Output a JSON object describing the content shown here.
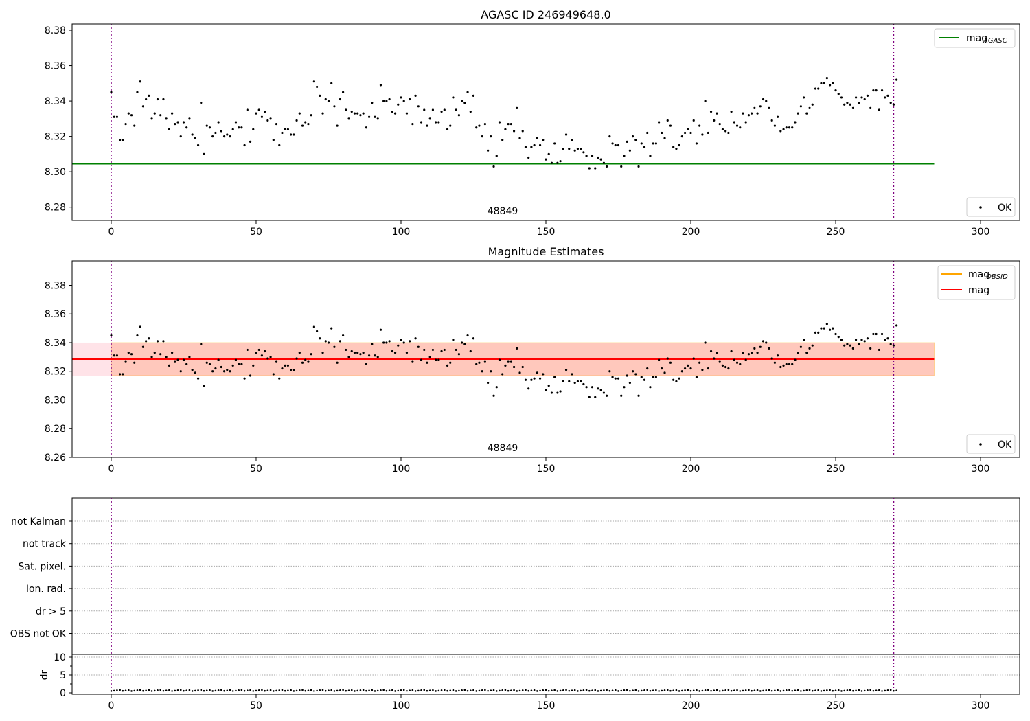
{
  "chart_data": [
    {
      "type": "scatter",
      "title": "AGASC ID 246949648.0",
      "xlim": [
        -13.5,
        313.5
      ],
      "ylim": [
        8.2725,
        8.3835
      ],
      "xticks": [
        "0",
        "50",
        "100",
        "150",
        "200",
        "250",
        "300"
      ],
      "yticks": [
        "8.28",
        "8.30",
        "8.32",
        "8.34",
        "8.36",
        "8.38"
      ],
      "vlines": [
        0,
        270
      ],
      "hline": {
        "y": 8.3045,
        "x_range": [
          -13.5,
          284
        ],
        "color": "#008000"
      },
      "annotation": {
        "text": "48849",
        "x": 135
      },
      "legend": [
        {
          "label": "mag",
          "sub": "AGASC",
          "kind": "line",
          "color": "#008000"
        },
        {
          "label": "OK",
          "kind": "dot",
          "color": "#000000"
        }
      ],
      "series_ref": "mags"
    },
    {
      "type": "scatter",
      "title": "Magnitude Estimates",
      "xlim": [
        -13.5,
        313.5
      ],
      "ylim": [
        8.26,
        8.397
      ],
      "xticks": [
        "0",
        "50",
        "100",
        "150",
        "200",
        "250",
        "300"
      ],
      "yticks": [
        "8.26",
        "8.28",
        "8.30",
        "8.32",
        "8.34",
        "8.36",
        "8.38"
      ],
      "vlines": [
        0,
        270
      ],
      "mag_mean": 8.3285,
      "band_outer": [
        8.317,
        8.34
      ],
      "band_inner": [
        8.317,
        8.34
      ],
      "band_x_range": [
        -13.5,
        284
      ],
      "annotation": {
        "text": "48849",
        "x": 135
      },
      "legend": [
        {
          "label": "mag",
          "sub": "OBSID",
          "kind": "line",
          "color": "#FFA500"
        },
        {
          "label": "mag",
          "kind": "line",
          "color": "#FF0000"
        },
        {
          "label": "OK",
          "kind": "dot",
          "color": "#000000"
        }
      ],
      "series_ref": "mags"
    },
    {
      "type": "table",
      "flags": [
        "not Kalman",
        "not track",
        "Sat. pixel.",
        "Ion. rad.",
        "dr > 5",
        "OBS not OK"
      ],
      "dr_yticks": [
        "0",
        "5",
        "10"
      ],
      "dr_ylabel": "dr",
      "xticks": [
        "0",
        "50",
        "100",
        "150",
        "200",
        "250",
        "300"
      ],
      "vlines": [
        0,
        270
      ]
    }
  ],
  "mags": [
    8.345,
    8.331,
    8.331,
    8.318,
    8.318,
    8.327,
    8.333,
    8.332,
    8.326,
    8.345,
    8.351,
    8.337,
    8.341,
    8.343,
    8.33,
    8.333,
    8.341,
    8.332,
    8.341,
    8.33,
    8.324,
    8.333,
    8.327,
    8.328,
    8.32,
    8.328,
    8.325,
    8.33,
    8.321,
    8.319,
    8.315,
    8.339,
    8.31,
    8.326,
    8.325,
    8.32,
    8.322,
    8.328,
    8.323,
    8.32,
    8.321,
    8.32,
    8.324,
    8.328,
    8.325,
    8.325,
    8.315,
    8.335,
    8.317,
    8.324,
    8.333,
    8.335,
    8.331,
    8.334,
    8.329,
    8.33,
    8.318,
    8.327,
    8.315,
    8.322,
    8.324,
    8.324,
    8.321,
    8.321,
    8.329,
    8.333,
    8.326,
    8.328,
    8.327,
    8.332,
    8.351,
    8.348,
    8.343,
    8.333,
    8.341,
    8.34,
    8.35,
    8.337,
    8.326,
    8.341,
    8.345,
    8.335,
    8.33,
    8.334,
    8.333,
    8.333,
    8.332,
    8.333,
    8.325,
    8.331,
    8.339,
    8.331,
    8.33,
    8.349,
    8.34,
    8.34,
    8.341,
    8.334,
    8.333,
    8.338,
    8.342,
    8.34,
    8.333,
    8.341,
    8.327,
    8.343,
    8.337,
    8.328,
    8.335,
    8.326,
    8.33,
    8.335,
    8.328,
    8.328,
    8.334,
    8.335,
    8.324,
    8.326,
    8.342,
    8.335,
    8.332,
    8.34,
    8.339,
    8.345,
    8.334,
    8.343,
    8.325,
    8.326,
    8.32,
    8.327,
    8.312,
    8.32,
    8.303,
    8.309,
    8.328,
    8.318,
    8.324,
    8.327,
    8.327,
    8.323,
    8.336,
    8.319,
    8.323,
    8.314,
    8.308,
    8.314,
    8.315,
    8.319,
    8.315,
    8.318,
    8.307,
    8.31,
    8.305,
    8.316,
    8.305,
    8.306,
    8.313,
    8.321,
    8.313,
    8.318,
    8.312,
    8.313,
    8.313,
    8.311,
    8.309,
    8.302,
    8.309,
    8.302,
    8.308,
    8.307,
    8.305,
    8.303,
    8.32,
    8.316,
    8.315,
    8.315,
    8.303,
    8.309,
    8.317,
    8.312,
    8.32,
    8.318,
    8.303,
    8.316,
    8.314,
    8.322,
    8.309,
    8.316,
    8.316,
    8.328,
    8.322,
    8.319,
    8.329,
    8.326,
    8.314,
    8.313,
    8.315,
    8.32,
    8.322,
    8.324,
    8.322,
    8.329,
    8.316,
    8.326,
    8.321,
    8.34,
    8.322,
    8.334,
    8.329,
    8.333,
    8.327,
    8.324,
    8.323,
    8.322,
    8.334,
    8.328,
    8.326,
    8.325,
    8.333,
    8.328,
    8.332,
    8.333,
    8.336,
    8.333,
    8.337,
    8.341,
    8.34,
    8.336,
    8.329,
    8.326,
    8.331,
    8.323,
    8.324,
    8.325,
    8.325,
    8.325,
    8.328,
    8.333,
    8.337,
    8.342,
    8.333,
    8.336,
    8.338,
    8.347,
    8.347,
    8.35,
    8.35,
    8.353,
    8.349,
    8.35,
    8.346,
    8.344,
    8.342,
    8.338,
    8.339,
    8.338,
    8.336,
    8.342,
    8.339,
    8.342,
    8.341,
    8.343,
    8.336,
    8.346,
    8.346,
    8.335,
    8.346,
    8.342,
    8.343,
    8.339,
    8.338,
    8.352
  ],
  "dr_mean": 0.5
}
